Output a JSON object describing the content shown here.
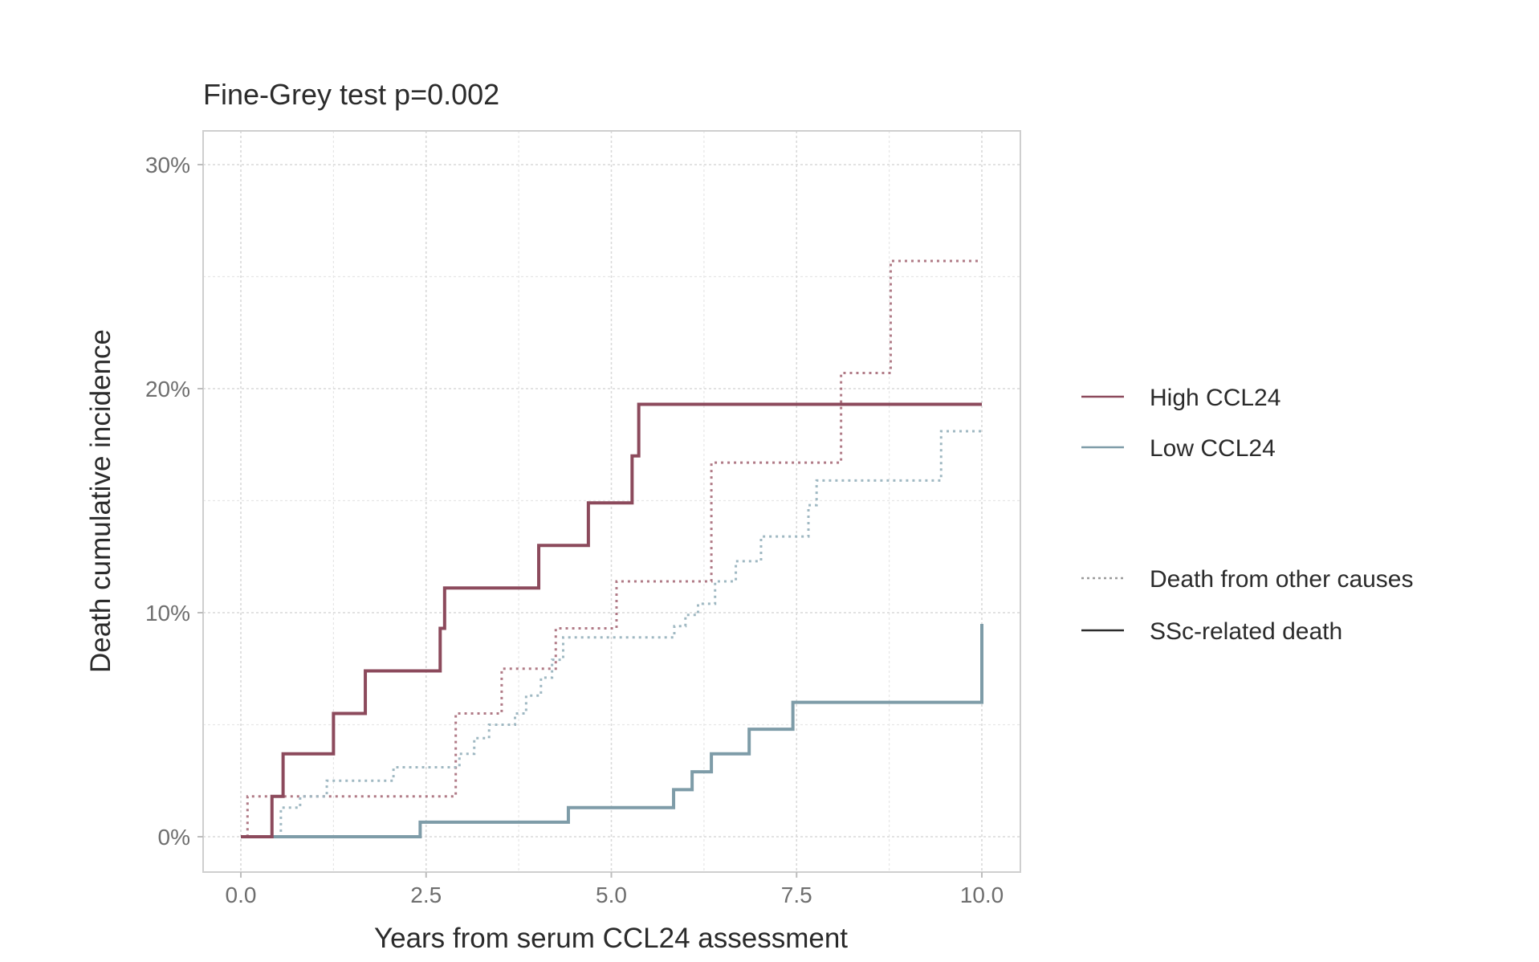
{
  "chart_data": {
    "type": "line",
    "subtype": "step",
    "title": "Fine-Grey test p=0.002",
    "xlabel": "Years from serum CCL24 assessment",
    "ylabel": "Death cumulative incidence",
    "xlim": [
      -0.5,
      10.5
    ],
    "ylim": [
      -1.9,
      31.5
    ],
    "x_ticks": [
      0,
      2.5,
      5,
      7.5,
      10
    ],
    "x_tick_labels": [
      "0.0",
      "2.5",
      "5.0",
      "7.5",
      "10.0"
    ],
    "x_minor_ticks": [
      1.25,
      3.75,
      6.25,
      8.75
    ],
    "y_ticks": [
      0,
      10,
      20,
      30
    ],
    "y_tick_labels": [
      "0%",
      "10%",
      "20%",
      "30%"
    ],
    "y_minor_ticks": [
      5,
      15,
      25
    ],
    "y_unit": "percent",
    "grid": true,
    "legend_position": "right",
    "legend": {
      "groups": [
        {
          "label": "High CCL24",
          "color": "#8c4a5c",
          "style": "solid"
        },
        {
          "label": "Low CCL24",
          "color": "#7e9ca8",
          "style": "solid"
        }
      ],
      "outcomes": [
        {
          "label": "Death from other causes",
          "color": "#9a9a9a",
          "style": "dotted"
        },
        {
          "label": "SSc-related death",
          "color": "#2b2b2b",
          "style": "solid"
        }
      ]
    },
    "series": [
      {
        "name": "High CCL24 - SSc-related death",
        "group": "High CCL24",
        "outcome": "SSc-related death",
        "color": "#8c4a5c",
        "style": "solid",
        "x": [
          0,
          0.42,
          0.57,
          1.25,
          1.68,
          2.69,
          2.75,
          4.02,
          4.69,
          5.28,
          5.37,
          10.0
        ],
        "y": [
          0,
          1.8,
          3.7,
          5.5,
          7.4,
          9.3,
          11.1,
          13.0,
          14.9,
          17.0,
          19.3,
          19.3
        ]
      },
      {
        "name": "Low CCL24 - SSc-related death",
        "group": "Low CCL24",
        "outcome": "SSc-related death",
        "color": "#7e9ca8",
        "style": "solid",
        "x": [
          0,
          2.42,
          4.42,
          5.84,
          6.09,
          6.35,
          6.86,
          7.45,
          10.0,
          10.0
        ],
        "y": [
          0,
          0.65,
          1.3,
          2.1,
          2.9,
          3.7,
          4.8,
          6.0,
          6.0,
          9.5
        ]
      },
      {
        "name": "High CCL24 - Death from other causes",
        "group": "High CCL24",
        "outcome": "Death from other causes",
        "color": "#b07a86",
        "style": "dotted",
        "x": [
          0,
          0.09,
          2.9,
          3.52,
          4.25,
          5.07,
          6.35,
          8.1,
          8.77,
          10.0
        ],
        "y": [
          0,
          1.8,
          5.5,
          7.5,
          9.3,
          11.4,
          16.7,
          20.7,
          25.7,
          25.7
        ]
      },
      {
        "name": "Low CCL24 - Death from other causes",
        "group": "Low CCL24",
        "outcome": "Death from other causes",
        "color": "#9fb8c2",
        "style": "dotted",
        "x": [
          0,
          0.54,
          0.8,
          1.16,
          2.06,
          2.95,
          3.15,
          3.35,
          3.7,
          3.85,
          4.05,
          4.2,
          4.35,
          5.85,
          6.0,
          6.17,
          6.4,
          6.68,
          7.02,
          7.66,
          7.77,
          9.45,
          10.0
        ],
        "y": [
          0,
          1.3,
          1.8,
          2.5,
          3.1,
          3.7,
          4.4,
          5.0,
          5.5,
          6.3,
          7.1,
          7.9,
          8.9,
          9.4,
          9.9,
          10.4,
          11.4,
          12.3,
          13.4,
          14.8,
          15.9,
          18.1,
          18.1
        ]
      }
    ]
  }
}
